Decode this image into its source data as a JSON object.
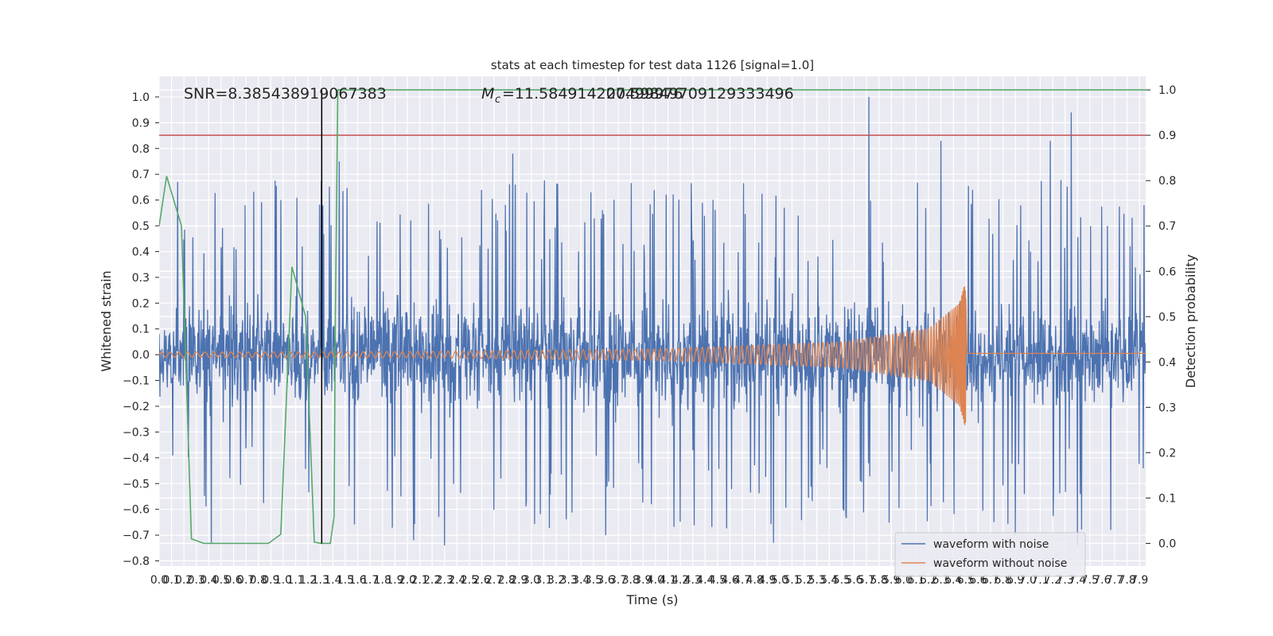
{
  "chart_data": {
    "type": "line",
    "title": "stats at each timestep for test data 1126 [signal=1.0]",
    "xlabel": "Time (s)",
    "ylabel": "Whitened strain",
    "y2label": "Detection probability",
    "xlim": [
      0.0,
      7.95
    ],
    "ylim": [
      -0.82,
      1.08
    ],
    "y2lim": [
      -0.05,
      1.03
    ],
    "xticks": [
      "0.0",
      "0.1",
      "0.2",
      "0.3",
      "0.4",
      "0.5",
      "0.6",
      "0.7",
      "0.8",
      "0.9",
      "1.0",
      "1.1",
      "1.2",
      "1.3",
      "1.4",
      "1.5",
      "1.6",
      "1.7",
      "1.8",
      "1.9",
      "2.0",
      "2.1",
      "2.2",
      "2.3",
      "2.4",
      "2.5",
      "2.6",
      "2.7",
      "2.8",
      "2.9",
      "3.0",
      "3.1",
      "3.2",
      "3.3",
      "3.4",
      "3.5",
      "3.6",
      "3.7",
      "3.8",
      "3.9",
      "4.0",
      "4.1",
      "4.2",
      "4.3",
      "4.4",
      "4.5",
      "4.6",
      "4.7",
      "4.8",
      "4.9",
      "5.0",
      "5.1",
      "5.2",
      "5.3",
      "5.4",
      "5.5",
      "5.6",
      "5.7",
      "5.8",
      "5.9",
      "6.0",
      "6.1",
      "6.2",
      "6.3",
      "6.4",
      "6.5",
      "6.6",
      "6.7",
      "6.8",
      "6.9",
      "7.0",
      "7.1",
      "7.2",
      "7.3",
      "7.4",
      "7.5",
      "7.6",
      "7.7",
      "7.8",
      "7.9"
    ],
    "yticks": [
      "−0.8",
      "−0.7",
      "−0.6",
      "−0.5",
      "−0.4",
      "−0.3",
      "−0.2",
      "−0.1",
      "0.0",
      "0.1",
      "0.2",
      "0.3",
      "0.4",
      "0.5",
      "0.6",
      "0.7",
      "0.8",
      "0.9",
      "1.0"
    ],
    "y2ticks": [
      "0.0",
      "0.1",
      "0.2",
      "0.3",
      "0.4",
      "0.5",
      "0.6",
      "0.7",
      "0.8",
      "0.9",
      "1.0"
    ],
    "grid": true,
    "legend_position": "bottom-right",
    "annotations": {
      "snr": "SNR=8.385438919067383",
      "mc": "=11.584914207499976",
      "mc_symbol": "M",
      "mc_subscript": "c",
      "overlap": "20.59849709129333496"
    },
    "series": [
      {
        "name": "waveform with noise",
        "color": "#4c72b0",
        "description_of_values": "whitened noisy strain, values mostly between -0.75 and 0.78 with peaks reaching 1.0 near t=5.7 and 0.94 near t=7.35",
        "peaks": [
          [
            0.15,
            0.67
          ],
          [
            0.98,
            0.6
          ],
          [
            1.32,
            0.58
          ],
          [
            1.45,
            0.75
          ],
          [
            2.85,
            0.78
          ],
          [
            5.72,
            1.0
          ],
          [
            6.3,
            0.83
          ],
          [
            7.18,
            0.83
          ],
          [
            7.35,
            0.94
          ]
        ],
        "troughs": [
          [
            0.42,
            -0.73
          ],
          [
            2.05,
            -0.72
          ],
          [
            2.3,
            -0.74
          ],
          [
            3.6,
            -0.7
          ],
          [
            4.95,
            -0.73
          ],
          [
            6.9,
            -0.7
          ],
          [
            7.4,
            -0.74
          ]
        ]
      },
      {
        "name": "waveform without noise",
        "color": "#dd8452",
        "description_of_values": "chirp signal with slowly growing amplitude and frequency, merging at about t=6.5",
        "amplitude_at": [
          [
            0.0,
            0.01
          ],
          [
            2.0,
            0.012
          ],
          [
            4.0,
            0.022
          ],
          [
            5.5,
            0.05
          ],
          [
            6.2,
            0.1
          ],
          [
            6.45,
            0.2
          ],
          [
            6.5,
            0.29
          ]
        ],
        "merger_time": 6.5
      }
    ],
    "secondary_series": [
      {
        "name": "",
        "color": "#55a868",
        "axis": "right",
        "x": [
          0.0,
          0.06,
          0.18,
          0.26,
          0.36,
          0.5,
          0.7,
          0.88,
          0.98,
          1.07,
          1.18,
          1.25,
          1.3,
          1.38,
          1.41,
          1.42,
          1.44,
          1.5,
          2.0,
          4.0,
          6.0,
          7.95
        ],
        "y": [
          0.7,
          0.81,
          0.7,
          0.01,
          0.0,
          0.0,
          0.0,
          0.0,
          0.02,
          0.61,
          0.5,
          0.003,
          0.0,
          0.0,
          0.06,
          0.5,
          1.0,
          1.0,
          1.0,
          1.0,
          1.0,
          1.0
        ]
      }
    ],
    "reference_lines": [
      {
        "orientation": "horizontal",
        "axis": "right",
        "y": 0.9,
        "color": "#c44e52"
      },
      {
        "orientation": "vertical",
        "x": 1.31,
        "y_range_right": [
          0.0,
          1.0
        ],
        "color": "#000000"
      }
    ]
  }
}
